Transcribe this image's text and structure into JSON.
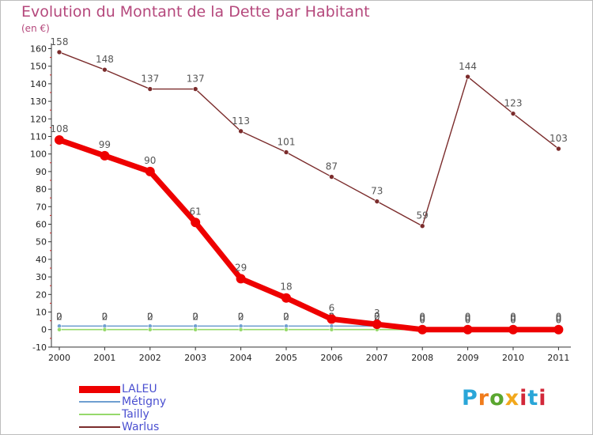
{
  "chart_data": {
    "type": "line",
    "title": "Evolution du Montant de la Dette par Habitant",
    "ylabel": "(en €)",
    "xlabel": "",
    "categories": [
      "2000",
      "2001",
      "2002",
      "2003",
      "2004",
      "2005",
      "2006",
      "2007",
      "2008",
      "2009",
      "2010",
      "2011"
    ],
    "ylim": [
      -10,
      165
    ],
    "yticks": [
      -10,
      0,
      10,
      20,
      30,
      40,
      50,
      60,
      70,
      80,
      90,
      100,
      110,
      120,
      130,
      140,
      150,
      160
    ],
    "ytick_labels": [
      "-10",
      "0",
      "10",
      "20",
      "30",
      "40",
      "50",
      "60",
      "70",
      "80",
      "90",
      "100",
      "110",
      "120",
      "130",
      "140",
      "150",
      "160"
    ],
    "grid": false,
    "legend_position": "bottom-left",
    "series": [
      {
        "name": "Warlus",
        "color": "#7b2c2c",
        "values": [
          158,
          148,
          137,
          137,
          113,
          101,
          87,
          73,
          59,
          144,
          123,
          103
        ],
        "labels": [
          "158",
          "148",
          "137",
          "137",
          "113",
          "101",
          "87",
          "73",
          "59",
          "144",
          "123",
          "103"
        ]
      },
      {
        "name": "Métigny",
        "color": "#6f9fd0",
        "values": [
          2,
          2,
          2,
          2,
          2,
          2,
          2,
          2,
          0,
          0,
          0,
          0
        ],
        "labels": [
          "2",
          "2",
          "2",
          "2",
          "2",
          "2",
          "2",
          "2",
          "0",
          "0",
          "0",
          "0"
        ]
      },
      {
        "name": "Tailly",
        "color": "#96d96b",
        "values": [
          0,
          0,
          0,
          0,
          0,
          0,
          0,
          0,
          0,
          0,
          0,
          0
        ],
        "labels": [
          "0",
          "0",
          "0",
          "0",
          "0",
          "0",
          "0",
          "0",
          "0",
          "0",
          "0",
          "0"
        ]
      },
      {
        "name": "LALEU",
        "color": "#ee0000",
        "values": [
          108,
          99,
          90,
          61,
          29,
          18,
          6,
          3,
          0,
          0,
          0,
          0
        ],
        "labels": [
          "108",
          "99",
          "90",
          "61",
          "29",
          "18",
          "6",
          "3",
          "0",
          "0",
          "0",
          "0"
        ]
      }
    ],
    "legend": [
      {
        "name": "LALEU",
        "color": "#ee0000"
      },
      {
        "name": "Métigny",
        "color": "#6f9fd0"
      },
      {
        "name": "Tailly",
        "color": "#96d96b"
      },
      {
        "name": "Warlus",
        "color": "#7b2c2c"
      }
    ]
  },
  "logo": {
    "letters": [
      "P",
      "r",
      "o",
      "x",
      "i",
      "t",
      "i"
    ],
    "colors": [
      "#2aa6d8",
      "#f07c1c",
      "#5aa62f",
      "#f2a81c",
      "#d2283a",
      "#2aa6d8",
      "#d2283a"
    ]
  }
}
